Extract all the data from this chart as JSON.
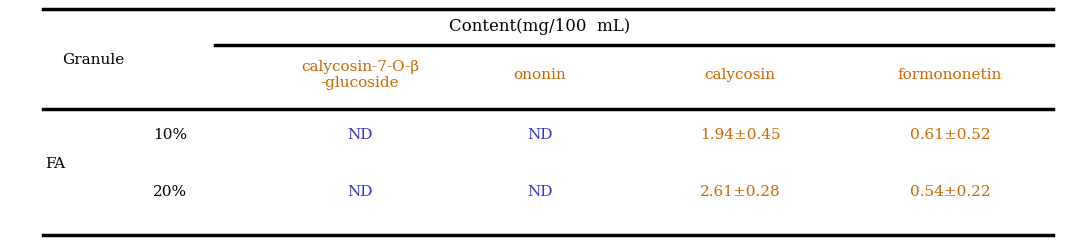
{
  "title": "Content(mg/100  mL)",
  "title_color": "#000000",
  "col_headers": [
    "calycosin-7-O-β\n-glucoside",
    "ononin",
    "calycosin",
    "formononetin"
  ],
  "col_header_color": "#cc6600",
  "row_label_top": "Granule",
  "row_group_label": "FA",
  "row_sub_labels": [
    "10%",
    "20%"
  ],
  "data": [
    [
      "ND",
      "ND",
      "1.94±0.45",
      "0.61±0.52"
    ],
    [
      "ND",
      "ND",
      "2.61±0.28",
      "0.54±0.22"
    ]
  ],
  "nd_color": "#3333cc",
  "value_color": "#cc6600",
  "black_color": "#000000",
  "background_color": "#ffffff",
  "font_size": 11,
  "header_font_size": 11
}
